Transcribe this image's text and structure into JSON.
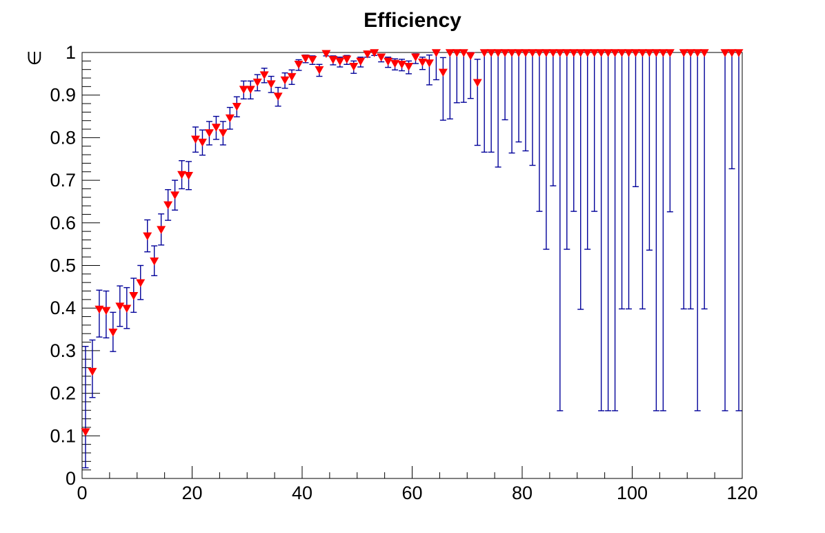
{
  "page": {
    "background_color": "#ffffff"
  },
  "chart_data": {
    "type": "scatter",
    "title": "Efficiency",
    "ylabel": "∈",
    "xlabel": "",
    "xlim": [
      0,
      120
    ],
    "ylim": [
      0,
      1
    ],
    "grid": false,
    "legend": false,
    "n_bins": 96,
    "bin_width": 1.25,
    "x_major_ticks": [
      0,
      20,
      40,
      60,
      80,
      100,
      120
    ],
    "x_minor_tick_step": 5,
    "y_major_ticks": [
      0,
      0.1,
      0.2,
      0.3,
      0.4,
      0.5,
      0.6,
      0.7,
      0.8,
      0.9,
      1
    ],
    "y_tick_labels": [
      "0",
      "0.1",
      "0.2",
      "0.3",
      "0.4",
      "0.5",
      "0.6",
      "0.7",
      "0.8",
      "0.9",
      "1"
    ],
    "y_minor_tick_step": 0.02,
    "marker_shape": "triangle-down",
    "marker_color": "#ff0000",
    "error_bar_color": "#000099",
    "axis_color": "#000000",
    "empty_bins": [
      108.125,
      114.375,
      115.625
    ],
    "series": [
      {
        "name": "efficiency",
        "point_format": [
          "x",
          "y",
          "err_low_abs",
          "err_high_abs"
        ],
        "points": [
          [
            0.625,
            0.11,
            0.025,
            0.31
          ],
          [
            1.875,
            0.252,
            0.19,
            0.325
          ],
          [
            3.125,
            0.398,
            0.332,
            0.442
          ],
          [
            4.375,
            0.395,
            0.33,
            0.44
          ],
          [
            5.625,
            0.344,
            0.298,
            0.39
          ],
          [
            6.875,
            0.405,
            0.357,
            0.452
          ],
          [
            8.125,
            0.4,
            0.352,
            0.448
          ],
          [
            9.375,
            0.43,
            0.39,
            0.47
          ],
          [
            10.625,
            0.46,
            0.42,
            0.5
          ],
          [
            11.875,
            0.57,
            0.532,
            0.607
          ],
          [
            13.125,
            0.511,
            0.476,
            0.546
          ],
          [
            14.375,
            0.585,
            0.548,
            0.621
          ],
          [
            15.625,
            0.643,
            0.606,
            0.678
          ],
          [
            16.875,
            0.666,
            0.63,
            0.7
          ],
          [
            18.125,
            0.714,
            0.68,
            0.746
          ],
          [
            19.375,
            0.712,
            0.678,
            0.744
          ],
          [
            20.625,
            0.797,
            0.766,
            0.825
          ],
          [
            21.875,
            0.79,
            0.759,
            0.818
          ],
          [
            23.125,
            0.812,
            0.783,
            0.838
          ],
          [
            24.375,
            0.825,
            0.796,
            0.85
          ],
          [
            25.625,
            0.812,
            0.783,
            0.838
          ],
          [
            26.875,
            0.847,
            0.82,
            0.871
          ],
          [
            28.125,
            0.874,
            0.849,
            0.896
          ],
          [
            29.375,
            0.914,
            0.891,
            0.933
          ],
          [
            30.625,
            0.914,
            0.891,
            0.933
          ],
          [
            31.875,
            0.931,
            0.91,
            0.948
          ],
          [
            33.125,
            0.948,
            0.929,
            0.963
          ],
          [
            34.375,
            0.927,
            0.906,
            0.944
          ],
          [
            35.625,
            0.898,
            0.874,
            0.918
          ],
          [
            36.875,
            0.936,
            0.916,
            0.952
          ],
          [
            38.125,
            0.944,
            0.925,
            0.959
          ],
          [
            39.375,
            0.973,
            0.958,
            0.983
          ],
          [
            40.625,
            0.987,
            0.976,
            0.994
          ],
          [
            41.875,
            0.984,
            0.972,
            0.992
          ],
          [
            43.125,
            0.96,
            0.944,
            0.972
          ],
          [
            44.375,
            0.998,
            0.992,
            1.0
          ],
          [
            45.625,
            0.984,
            0.971,
            0.992
          ],
          [
            46.875,
            0.98,
            0.966,
            0.989
          ],
          [
            48.125,
            0.985,
            0.972,
            0.993
          ],
          [
            49.375,
            0.968,
            0.951,
            0.98
          ],
          [
            50.625,
            0.98,
            0.966,
            0.989
          ],
          [
            51.875,
            0.997,
            0.989,
            1.0
          ],
          [
            53.125,
            1.0,
            0.993,
            1.0
          ],
          [
            54.375,
            0.99,
            0.978,
            0.996
          ],
          [
            55.625,
            0.98,
            0.965,
            0.989
          ],
          [
            56.875,
            0.975,
            0.959,
            0.985
          ],
          [
            58.125,
            0.973,
            0.957,
            0.984
          ],
          [
            59.375,
            0.968,
            0.95,
            0.98
          ],
          [
            60.625,
            0.99,
            0.974,
            0.997
          ],
          [
            61.875,
            0.978,
            0.96,
            0.989
          ],
          [
            63.125,
            0.976,
            0.924,
            0.994
          ],
          [
            64.375,
            1.0,
            0.936,
            1.0
          ],
          [
            65.625,
            0.954,
            0.841,
            0.988
          ],
          [
            66.875,
            1.0,
            0.844,
            1.0
          ],
          [
            68.125,
            1.0,
            0.882,
            1.0
          ],
          [
            69.375,
            1.0,
            0.883,
            1.0
          ],
          [
            70.625,
            0.993,
            0.892,
            1.0
          ],
          [
            71.875,
            0.93,
            0.782,
            0.984
          ],
          [
            73.125,
            1.0,
            0.766,
            1.0
          ],
          [
            74.375,
            1.0,
            0.766,
            1.0
          ],
          [
            75.625,
            1.0,
            0.731,
            1.0
          ],
          [
            76.875,
            1.0,
            0.842,
            1.0
          ],
          [
            78.125,
            1.0,
            0.764,
            1.0
          ],
          [
            79.375,
            1.0,
            0.79,
            1.0
          ],
          [
            80.625,
            1.0,
            0.769,
            1.0
          ],
          [
            81.875,
            1.0,
            0.735,
            1.0
          ],
          [
            83.125,
            1.0,
            0.627,
            1.0
          ],
          [
            84.375,
            1.0,
            0.538,
            1.0
          ],
          [
            85.625,
            1.0,
            0.687,
            1.0
          ],
          [
            86.875,
            1.0,
            0.159,
            1.0
          ],
          [
            88.125,
            1.0,
            0.538,
            1.0
          ],
          [
            89.375,
            1.0,
            0.627,
            1.0
          ],
          [
            90.625,
            1.0,
            0.397,
            1.0
          ],
          [
            91.875,
            1.0,
            0.538,
            1.0
          ],
          [
            93.125,
            1.0,
            0.627,
            1.0
          ],
          [
            94.375,
            1.0,
            0.159,
            1.0
          ],
          [
            95.625,
            1.0,
            0.159,
            1.0
          ],
          [
            96.875,
            1.0,
            0.159,
            1.0
          ],
          [
            98.125,
            1.0,
            0.398,
            1.0
          ],
          [
            99.375,
            1.0,
            0.398,
            1.0
          ],
          [
            100.625,
            1.0,
            0.685,
            1.0
          ],
          [
            101.875,
            1.0,
            0.398,
            1.0
          ],
          [
            103.125,
            1.0,
            0.536,
            1.0
          ],
          [
            104.375,
            1.0,
            0.159,
            1.0
          ],
          [
            105.625,
            1.0,
            0.159,
            1.0
          ],
          [
            106.875,
            1.0,
            0.626,
            1.0
          ],
          [
            109.375,
            1.0,
            0.398,
            1.0
          ],
          [
            110.625,
            1.0,
            0.398,
            1.0
          ],
          [
            111.875,
            1.0,
            0.159,
            1.0
          ],
          [
            113.125,
            1.0,
            0.398,
            1.0
          ],
          [
            116.875,
            1.0,
            0.159,
            1.0
          ],
          [
            118.125,
            1.0,
            0.727,
            1.0
          ],
          [
            119.375,
            1.0,
            0.159,
            1.0
          ]
        ]
      }
    ]
  }
}
